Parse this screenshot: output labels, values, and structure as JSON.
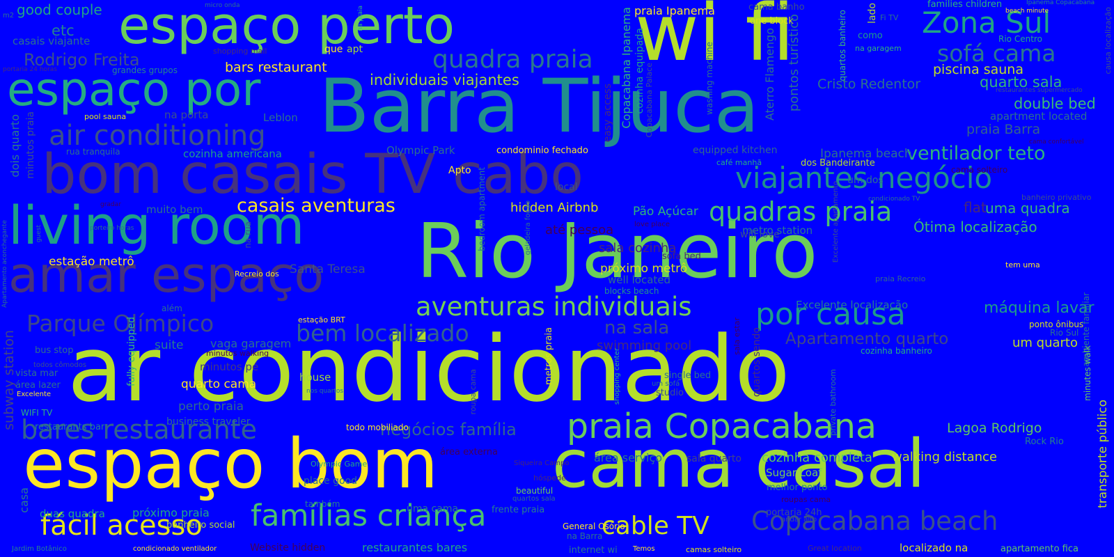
{
  "words": [
    {
      "text": "ar condicionado",
      "color": "#b5de2b"
    },
    {
      "text": "Rio Janeiro",
      "color": "#6ccd5a"
    },
    {
      "text": "Barra Tijuca",
      "color": "#218f8d"
    },
    {
      "text": "wi fi",
      "color": "#b5de2b"
    },
    {
      "text": "bom casais TV cabo",
      "color": "#46327e"
    },
    {
      "text": "espaço bom",
      "color": "#fde725"
    },
    {
      "text": "cama casal",
      "color": "#a2da37"
    },
    {
      "text": "living room",
      "color": "#1fa088"
    },
    {
      "text": "amar espaço",
      "color": "#46327e"
    },
    {
      "text": "espaço perto",
      "color": "#6ccd5a"
    },
    {
      "text": "espaço por",
      "color": "#25ac82"
    },
    {
      "text": "praia Copacabana",
      "color": "#6ccd5a"
    },
    {
      "text": "viajantes negócio",
      "color": "#20928c"
    },
    {
      "text": "Copacabana beach",
      "color": "#3b528b"
    },
    {
      "text": "famílias criança",
      "color": "#4ac16d"
    },
    {
      "text": "aventuras individuais",
      "color": "#75d054"
    },
    {
      "text": "bares restaurante",
      "color": "#33638d"
    },
    {
      "text": "air conditioning",
      "color": "#3b528b"
    },
    {
      "text": "Zona Sul",
      "color": "#20a486"
    },
    {
      "text": "quadras praia",
      "color": "#4ac16d"
    },
    {
      "text": "quadra praia",
      "color": "#2a788e"
    },
    {
      "text": "por causa",
      "color": "#1e9b8a"
    },
    {
      "text": "bem localizado",
      "color": "#33638d"
    },
    {
      "text": "Parque Olímpico",
      "color": "#3e4989"
    },
    {
      "text": "fácil acesso",
      "color": "#e5e419"
    },
    {
      "text": "sofá cama",
      "color": "#2a788e"
    },
    {
      "text": "cable TV",
      "color": "#d0e11c"
    },
    {
      "text": "casais aventuras",
      "color": "#fde725"
    },
    {
      "text": "ventilador teto",
      "color": "#2fb47c"
    },
    {
      "text": "Apartamento quarto",
      "color": "#3e4989"
    },
    {
      "text": "na sala",
      "color": "#3b528b"
    },
    {
      "text": "Rodrigo Freita",
      "color": "#3b528b"
    },
    {
      "text": "negócios família",
      "color": "#31688e"
    },
    {
      "text": "individuais viajantes",
      "color": "#a2da37"
    },
    {
      "text": "máquina lavar",
      "color": "#1f9e89"
    },
    {
      "text": "bars restaurant",
      "color": "#fde725"
    },
    {
      "text": "piscina sauna",
      "color": "#bddf26"
    },
    {
      "text": "quarto sala",
      "color": "#35b779"
    },
    {
      "text": "Cristo Redentor",
      "color": "#2c728e"
    },
    {
      "text": "double bed",
      "color": "#3dbc74"
    },
    {
      "text": "praia Barra",
      "color": "#33638d"
    },
    {
      "text": "uma quadra",
      "color": "#38b977"
    },
    {
      "text": "Ótima localização",
      "color": "#3dbc74"
    },
    {
      "text": "flat",
      "color": "#482878"
    },
    {
      "text": "walking distance",
      "color": "#bddf26"
    },
    {
      "text": "cozinha completa",
      "color": "#5ec962"
    },
    {
      "text": "Lagoa Rodrigo",
      "color": "#5ec962"
    },
    {
      "text": "um quarto",
      "color": "#bddf26"
    },
    {
      "text": "hidden Airbnb",
      "color": "#d8e219"
    },
    {
      "text": "Pão Açúcar",
      "color": "#2fb47c"
    },
    {
      "text": "próximo metrô",
      "color": "#d8e219"
    },
    {
      "text": "well located",
      "color": "#2e6f8e"
    },
    {
      "text": "Olympic Park",
      "color": "#2d708e"
    },
    {
      "text": "cozinha americana",
      "color": "#1fa088"
    },
    {
      "text": "estação metrô",
      "color": "#fde725"
    },
    {
      "text": "Santa Teresa",
      "color": "#3b528b"
    },
    {
      "text": "quarto cama",
      "color": "#fde725"
    },
    {
      "text": "perto praia",
      "color": "#2f6c8e"
    },
    {
      "text": "suite",
      "color": "#287d8e"
    },
    {
      "text": "vaga garagem",
      "color": "#2c728e"
    },
    {
      "text": "minutos pé",
      "color": "#443983"
    },
    {
      "text": "house",
      "color": "#a0da39"
    },
    {
      "text": "business traveler",
      "color": "#2e6e8e"
    },
    {
      "text": "próximo praia",
      "color": "#22a884"
    },
    {
      "text": "duas quadra",
      "color": "#27ad81"
    },
    {
      "text": "restaurantes bares",
      "color": "#22a884"
    },
    {
      "text": "Sugar Loaf",
      "color": "#75d054"
    },
    {
      "text": "melhor ponto",
      "color": "#26818e"
    },
    {
      "text": "localizado na",
      "color": "#dde318"
    },
    {
      "text": "General Osório",
      "color": "#fde725"
    },
    {
      "text": "metro station",
      "color": "#2a788e"
    },
    {
      "text": "swimming pool",
      "color": "#472d7b"
    },
    {
      "text": "sala cozinha",
      "color": "#482878"
    },
    {
      "text": "até pessoa",
      "color": "#440154"
    },
    {
      "text": "muito bem",
      "color": "#2c728e"
    },
    {
      "text": "Leblon",
      "color": "#2c728e"
    },
    {
      "text": "equipped kitchen",
      "color": "#31688e"
    },
    {
      "text": "Ipanema beach",
      "color": "#2c728e"
    },
    {
      "text": "praia Ipanema",
      "color": "#fde725"
    },
    {
      "text": "Excelente localização",
      "color": "#26828e"
    },
    {
      "text": "good couple",
      "color": "#20a386"
    },
    {
      "text": "etc",
      "color": "#25838e"
    },
    {
      "text": "casais viajante",
      "color": "#2c728e"
    },
    {
      "text": "grandes grupos",
      "color": "#25858e"
    },
    {
      "text": "pool sauna",
      "color": "#dde318"
    },
    {
      "text": "na porta",
      "color": "#3b528b"
    },
    {
      "text": "rua tranquila",
      "color": "#2d708e"
    },
    {
      "text": "condominio fechado",
      "color": "#fde725"
    },
    {
      "text": "Apto",
      "color": "#fde725"
    },
    {
      "text": "estação BRT",
      "color": "#fde725"
    },
    {
      "text": "Recreio dos",
      "color": "#fde725"
    },
    {
      "text": "blocks beach",
      "color": "#21918c"
    },
    {
      "text": "sofa bed",
      "color": "#482878"
    },
    {
      "text": "will love",
      "color": "#3b528b"
    },
    {
      "text": "uma cama",
      "color": "#2a788e"
    },
    {
      "text": "frente praia",
      "color": "#277f8e"
    },
    {
      "text": "banheiro social",
      "color": "#b5de2b"
    },
    {
      "text": "também",
      "color": "#26828e"
    },
    {
      "text": "place good",
      "color": "#2d708e"
    },
    {
      "text": "Olympic Game",
      "color": "#22a884"
    },
    {
      "text": "área externa",
      "color": "#440154"
    },
    {
      "text": "área serviço",
      "color": "#2a788e"
    },
    {
      "text": "sala quarto",
      "color": "#414487"
    },
    {
      "text": "hóspede",
      "color": "#482878"
    },
    {
      "text": "beautiful",
      "color": "#6ccd5a"
    },
    {
      "text": "quartos sala",
      "color": "#2e6e8e"
    },
    {
      "text": "portaria 24h",
      "color": "#3b528b"
    },
    {
      "text": "roupas cama",
      "color": "#440154"
    },
    {
      "text": "andar alto",
      "color": "#3b528b"
    },
    {
      "text": "Rock Rio",
      "color": "#26828e"
    },
    {
      "text": "ponto ônibus",
      "color": "#d8e219"
    },
    {
      "text": "Rio Sul",
      "color": "#2c728e"
    },
    {
      "text": "cozinha banheiro",
      "color": "#27ad81"
    },
    {
      "text": "tem uma",
      "color": "#fde725"
    },
    {
      "text": "praia Recreio",
      "color": "#31688e"
    },
    {
      "text": "apartment located",
      "color": "#2c728e"
    },
    {
      "text": "cama solteiro",
      "color": "#440154"
    },
    {
      "text": "banheiro privativo",
      "color": "#3b528b"
    },
    {
      "text": "condicionado TV",
      "color": "#2c728e"
    },
    {
      "text": "um dos",
      "color": "#2c728e"
    },
    {
      "text": "dos Bandeirante",
      "color": "#b5de2b"
    },
    {
      "text": "café manhã",
      "color": "#25ac82"
    },
    {
      "text": "bus stop",
      "color": "#2e6e8e"
    },
    {
      "text": "todos cômodos",
      "color": "#3b528b"
    },
    {
      "text": "área lazer",
      "color": "#2d708e"
    },
    {
      "text": "vista mar",
      "color": "#2d708e"
    },
    {
      "text": "Excelente",
      "color": "#fde725"
    },
    {
      "text": "WIFI TV",
      "color": "#2fb47c"
    },
    {
      "text": "restaurants bar",
      "color": "#26828e"
    },
    {
      "text": "Jardim Botânico",
      "color": "#26828e"
    },
    {
      "text": "condicionado ventilador",
      "color": "#fde725"
    },
    {
      "text": "Website hidden",
      "color": "#440154"
    },
    {
      "text": "internet wi",
      "color": "#2a788e"
    },
    {
      "text": "Temos",
      "color": "#fde725"
    },
    {
      "text": "camas solteiro",
      "color": "#dde318"
    },
    {
      "text": "Great location",
      "color": "#472d7b"
    },
    {
      "text": "apartamento fica",
      "color": "#5ec962"
    },
    {
      "text": "todo mobiliado",
      "color": "#fde725"
    },
    {
      "text": "nos quartos",
      "color": "#2a788e"
    },
    {
      "text": "minutos walking",
      "color": "#440154"
    },
    {
      "text": "single bed",
      "color": "#2c728e"
    },
    {
      "text": "um sofá",
      "color": "#2c728e"
    },
    {
      "text": "studio",
      "color": "#3b528b"
    },
    {
      "text": "Siqueira Campo",
      "color": "#482878"
    },
    {
      "text": "além",
      "color": "#2c728e"
    },
    {
      "text": "m2",
      "color": "#2c728e"
    },
    {
      "text": "micro onda",
      "color": "#2c728e"
    },
    {
      "text": "shopping mall",
      "color": "#472d7b"
    },
    {
      "text": "que",
      "color": "#fde725"
    },
    {
      "text": "apt",
      "color": "#a2da37"
    },
    {
      "text": "cama banho",
      "color": "#3b528b"
    },
    {
      "text": "one block",
      "color": "#dde318"
    },
    {
      "text": "families children",
      "color": "#2fb47c"
    },
    {
      "text": "beach minute",
      "color": "#fde725"
    },
    {
      "text": "Ipanema Copacabana",
      "color": "#26828e"
    },
    {
      "text": "Fi TV",
      "color": "#2c728e"
    },
    {
      "text": "como",
      "color": "#1fa088"
    },
    {
      "text": "na garagem",
      "color": "#2fb47c"
    },
    {
      "text": "Rio Centro",
      "color": "#22a884"
    },
    {
      "text": "restaurantes supermercado",
      "color": "#3b528b"
    },
    {
      "text": "cama confortável",
      "color": "#440154"
    },
    {
      "text": "porteiro horas",
      "color": "#2c728e"
    },
    {
      "text": "gradar",
      "color": "#440154"
    },
    {
      "text": "love place",
      "color": "#440154"
    },
    {
      "text": "portaria 24 horas",
      "color": "#472d7b"
    },
    {
      "text": "guest",
      "color": "#2a788e"
    },
    {
      "text": "na praia",
      "color": "#2fb47c"
    },
    {
      "text": "lado",
      "color": "#b5de2b"
    },
    {
      "text": "quartos banheiro",
      "color": "#3dbc74"
    },
    {
      "text": "transporte público",
      "color": "#bddf26"
    },
    {
      "text": "ambiente familiar",
      "color": "#2a788e"
    },
    {
      "text": "minutes walk",
      "color": "#6ccd5a"
    },
    {
      "text": "causa localização",
      "color": "#3b528b"
    },
    {
      "text": "Copacabana Ipanema",
      "color": "#2fb47c"
    },
    {
      "text": "cozinha equipada",
      "color": "#1fa088"
    },
    {
      "text": "Copacabana Palace",
      "color": "#3b528b"
    },
    {
      "text": "easy access",
      "color": "#472d7b"
    },
    {
      "text": "pontos turístico",
      "color": "#2c728e"
    },
    {
      "text": "Aterro Flamengo",
      "color": "#2c728e"
    },
    {
      "text": "washing machine",
      "color": "#2c728e"
    },
    {
      "text": "dois quarto",
      "color": "#2a788e"
    },
    {
      "text": "minutos praia",
      "color": "#3b528b"
    },
    {
      "text": "Apartamento aconchegante",
      "color": "#2c728e"
    },
    {
      "text": "subway station",
      "color": "#414487"
    },
    {
      "text": "fully equipped",
      "color": "#3dbc74"
    },
    {
      "text": "casa",
      "color": "#2a788e"
    },
    {
      "text": "bedroom apartment",
      "color": "#2a788e"
    },
    {
      "text": "geladeira fogão",
      "color": "#2c728e"
    },
    {
      "text": "na rua",
      "color": "#3b528b"
    },
    {
      "text": "metros praia",
      "color": "#dde318"
    },
    {
      "text": "roupa cama",
      "color": "#3b528b"
    },
    {
      "text": "shopping center",
      "color": "#2fb47c"
    },
    {
      "text": "quartos sendo",
      "color": "#472d7b"
    },
    {
      "text": "sala estar",
      "color": "#440154"
    },
    {
      "text": "private bathroom",
      "color": "#2a788e"
    },
    {
      "text": "Excelente apartamento",
      "color": "#3b528b"
    },
    {
      "text": "local",
      "color": "#3b528b"
    },
    {
      "text": "na Barra",
      "color": "#2c728e"
    }
  ]
}
